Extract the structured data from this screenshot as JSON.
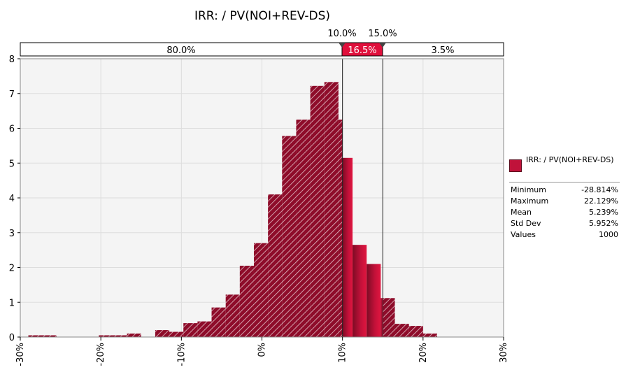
{
  "chart_data": {
    "type": "bar",
    "subtype": "histogram",
    "title": "IRR: / PV(NOI+REV-DS)",
    "xlim": [
      -0.3,
      0.3
    ],
    "ylim": [
      0,
      8
    ],
    "x_ticks": [
      "-30%",
      "-20%",
      "-10%",
      "0%",
      "10%",
      "20%",
      "30%"
    ],
    "y_ticks": [
      "0",
      "1",
      "2",
      "3",
      "4",
      "5",
      "6",
      "7",
      "8"
    ],
    "grid": true,
    "series": [
      {
        "name": "IRR: / PV(NOI+REV-DS)",
        "bins": [
          {
            "x0": -0.29,
            "x1": -0.255,
            "y": 0.05
          },
          {
            "x0": -0.2025,
            "x1": -0.185,
            "y": 0.05
          },
          {
            "x0": -0.185,
            "x1": -0.1675,
            "y": 0.05
          },
          {
            "x0": -0.1675,
            "x1": -0.15,
            "y": 0.1
          },
          {
            "x0": -0.1325,
            "x1": -0.115,
            "y": 0.2
          },
          {
            "x0": -0.115,
            "x1": -0.0975,
            "y": 0.15
          },
          {
            "x0": -0.0975,
            "x1": -0.08,
            "y": 0.4
          },
          {
            "x0": -0.08,
            "x1": -0.0625,
            "y": 0.45
          },
          {
            "x0": -0.0625,
            "x1": -0.045,
            "y": 0.85
          },
          {
            "x0": -0.045,
            "x1": -0.0275,
            "y": 1.22
          },
          {
            "x0": -0.0275,
            "x1": -0.01,
            "y": 2.05
          },
          {
            "x0": -0.01,
            "x1": 0.0075,
            "y": 2.7
          },
          {
            "x0": 0.0075,
            "x1": 0.025,
            "y": 4.1
          },
          {
            "x0": 0.025,
            "x1": 0.0425,
            "y": 5.78
          },
          {
            "x0": 0.0425,
            "x1": 0.06,
            "y": 6.25
          },
          {
            "x0": 0.06,
            "x1": 0.0775,
            "y": 7.22
          },
          {
            "x0": 0.0775,
            "x1": 0.095,
            "y": 7.33
          },
          {
            "x0": 0.095,
            "x1": 0.1,
            "y": 6.25
          },
          {
            "x0": 0.1,
            "x1": 0.1125,
            "y": 5.15
          },
          {
            "x0": 0.1125,
            "x1": 0.13,
            "y": 2.65
          },
          {
            "x0": 0.13,
            "x1": 0.1475,
            "y": 2.1
          },
          {
            "x0": 0.1475,
            "x1": 0.15,
            "y": 1.12
          },
          {
            "x0": 0.15,
            "x1": 0.165,
            "y": 1.12
          },
          {
            "x0": 0.165,
            "x1": 0.1825,
            "y": 0.38
          },
          {
            "x0": 0.1825,
            "x1": 0.2,
            "y": 0.32
          },
          {
            "x0": 0.2,
            "x1": 0.2175,
            "y": 0.1
          }
        ]
      }
    ],
    "delimiters": {
      "left": "10.0%",
      "right": "15.0%",
      "left_value": 0.1,
      "right_value": 0.15,
      "bands": [
        "80.0%",
        "16.5%",
        "3.5%"
      ]
    },
    "legend": {
      "placement": "right",
      "name": "IRR: / PV(NOI+REV-DS)",
      "stats": [
        {
          "label": "Minimum",
          "value": "-28.814%"
        },
        {
          "label": "Maximum",
          "value": "22.129%"
        },
        {
          "label": "Mean",
          "value": "5.239%"
        },
        {
          "label": "Std Dev",
          "value": "5.952%"
        },
        {
          "label": "Values",
          "value": "1000"
        }
      ]
    },
    "colors": {
      "bar_dark": "#5a0a1c",
      "bar_mid": "#9b1030",
      "bar_bright": "#d8103c",
      "hatch": "#ffffff",
      "highlight": "#e0103c",
      "grid": "#dddddd",
      "plot_bg": "#f4f4f4"
    }
  }
}
